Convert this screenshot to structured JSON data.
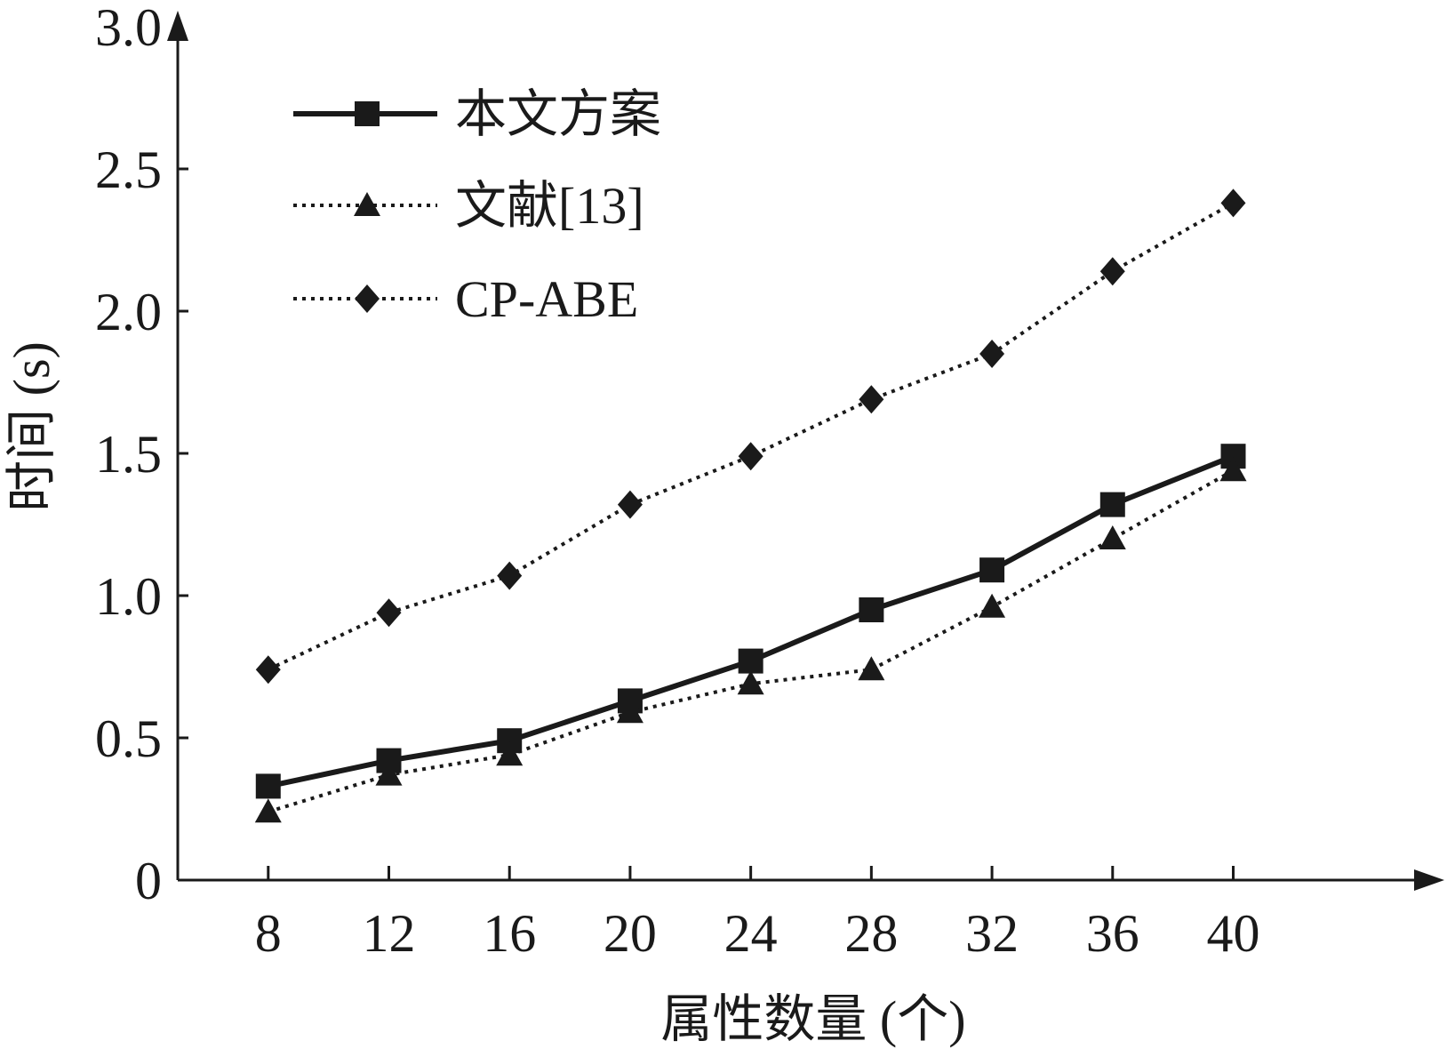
{
  "chart_data": {
    "type": "line",
    "title": "",
    "xlabel": "属性数量 (个)",
    "ylabel": "时间 (s)",
    "x": [
      8,
      12,
      16,
      20,
      24,
      28,
      32,
      36,
      40
    ],
    "xlim": [
      5,
      47
    ],
    "ylim": [
      0,
      3.0
    ],
    "yticks": [
      0,
      0.5,
      1.0,
      1.5,
      2.0,
      2.5,
      3.0
    ],
    "ytick_labels": [
      "0",
      "0.5",
      "1.0",
      "1.5",
      "2.0",
      "2.5",
      "3.0"
    ],
    "grid": false,
    "legend_position": "top-left",
    "series": [
      {
        "name": "本文方案",
        "values": [
          0.33,
          0.42,
          0.49,
          0.63,
          0.77,
          0.95,
          1.09,
          1.32,
          1.49
        ],
        "line_style": "solid",
        "marker": "square",
        "color": "#1a1a1a"
      },
      {
        "name": "文献[13]",
        "values": [
          0.24,
          0.37,
          0.44,
          0.59,
          0.69,
          0.74,
          0.96,
          1.2,
          1.44
        ],
        "line_style": "dotted",
        "marker": "triangle",
        "color": "#1a1a1a"
      },
      {
        "name": "CP-ABE",
        "values": [
          0.74,
          0.94,
          1.07,
          1.32,
          1.49,
          1.69,
          1.85,
          2.14,
          2.38
        ],
        "line_style": "dotted",
        "marker": "diamond",
        "color": "#1a1a1a"
      }
    ]
  }
}
